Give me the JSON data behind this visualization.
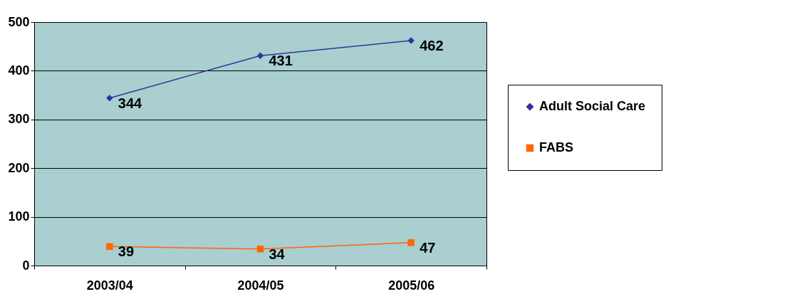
{
  "chart_data": {
    "type": "line",
    "categories": [
      "2003/04",
      "2004/05",
      "2005/06"
    ],
    "series": [
      {
        "name": "Adult Social Care",
        "color": "#333399",
        "values": [
          344,
          431,
          462
        ],
        "marker": "diamond"
      },
      {
        "name": "FABS",
        "color": "#ff6600",
        "values": [
          39,
          34,
          47
        ],
        "marker": "square"
      }
    ],
    "ylim": [
      0,
      500
    ],
    "yticks": [
      0,
      100,
      200,
      300,
      400,
      500
    ],
    "grid": "y",
    "legend": "right",
    "data_labels": true,
    "line_style": "solid"
  }
}
